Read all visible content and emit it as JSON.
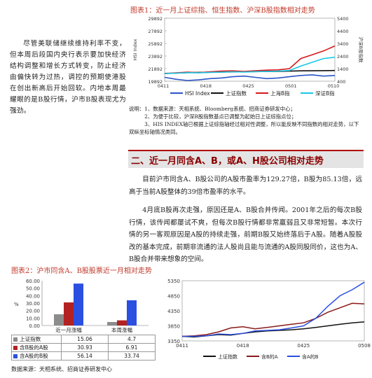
{
  "figure1": {
    "title": "图表1：近一月上证综指、恒生指数、沪深B股指数相对走势",
    "chart_data": {
      "type": "line",
      "x_ticks": [
        "0411",
        "0418",
        "0425",
        "0501",
        "0510"
      ],
      "y_left_ticks": [
        "29892",
        "27892",
        "25892",
        "23892",
        "21892",
        "19892"
      ],
      "y_right_ticks": [
        "5400",
        "4400",
        "3400",
        "2400",
        "1400",
        "400"
      ],
      "y_left_label": "HSI Index",
      "y_right_label": "沪深B股指数",
      "legend": [
        "HSI Index",
        "上证指数",
        "上海B指",
        "深证B指"
      ],
      "colors": [
        "#2a55c8",
        "#111111",
        "#d61a1a",
        "#19c8e6"
      ],
      "x": [
        0,
        2,
        4,
        6,
        8,
        10,
        12,
        14,
        16,
        18,
        20,
        22,
        24,
        26,
        28,
        30
      ],
      "series": [
        {
          "name": "HSI Index",
          "values": [
            20500,
            20200,
            20000,
            20100,
            20300,
            20400,
            20600,
            20700,
            20500,
            20300,
            20400,
            20600,
            20800,
            20900,
            20700,
            20800
          ]
        },
        {
          "name": "上证指数",
          "values": [
            1020,
            1040,
            1080,
            1100,
            1110,
            1130,
            1140,
            1150,
            1160,
            1170,
            1180,
            1200,
            1220,
            1230,
            1240,
            1250
          ]
        },
        {
          "name": "上海B指",
          "values": [
            1000,
            1060,
            1120,
            1080,
            1150,
            1200,
            1220,
            1180,
            1230,
            1280,
            1300,
            1400,
            2200,
            2500,
            2800,
            3200
          ]
        },
        {
          "name": "深证B指",
          "values": [
            1000,
            1040,
            1080,
            1060,
            1100,
            1120,
            1150,
            1130,
            1160,
            1180,
            1200,
            1250,
            1600,
            1900,
            2200,
            2300
          ]
        }
      ]
    }
  },
  "sidebar_text": "尽管美联储继续维持利率不变，但本周后段国内央行表示要加快经济结构调整和增长方式转变，防止经济由偏快转为过热，调控的预期使港股在创出新高后开始回软。内地本周最耀眼的是B股行情，沪市B股表现尤为强劲。",
  "notes": [
    "说明：1、数据来源：天相系统、Bloomberg系统、招商证券研发中心；",
    "　　　2、为便于比较，沪深B股指数基点已调整为起始日上证综指点位；",
    "　　　3、HIS INDEX轴已根据上证综指轴经过相对性调整，所以能反映不同指数的相对走势，以下双纵坐标轴情况类同。"
  ],
  "section_title": "二、近一月同含A、B，或A、H股公司相对走势",
  "paragraph1": "目前沪市同含A、B股公司的A股市盈率为129.27倍，B股为85.13倍，远高于当前A股整体的39倍市盈率的水平。",
  "paragraph2": "4月底B股再次走强，原因还是A、B股合并传闻。2001年之后的每次B股行情，该传闻都屡试不爽，但每次B股行情都非常羸弱且又非常短暂。本次行情的另一客观原因是A股的持续走强，前期B股又始终落后于A股。随着A股股改的基本完成，前期非流通的法人股尚且能与流通的A股同股同价，这也为A、B股合并带来想象的空间。",
  "figure2": {
    "title": "图表2：沪市同含A、B股股票近一月相对走势",
    "bar_chart": {
      "type": "bar",
      "categories": [
        "近一月涨幅",
        "本周涨幅"
      ],
      "y_ticks": [
        "60.00",
        "50.00",
        "40.00",
        "30.00",
        "20.00",
        "10.00",
        "0.00"
      ],
      "ylim": [
        0,
        60
      ],
      "y_unit": "%",
      "series": [
        {
          "name": "上证指数",
          "values": [
            15.06,
            4.7
          ],
          "color": "#8c8c8c"
        },
        {
          "name": "含B股的A股",
          "values": [
            30.93,
            6.91
          ],
          "color": "#b22222"
        },
        {
          "name": "含A股的B股",
          "values": [
            56.14,
            33.74
          ],
          "color": "#2b4fe0"
        }
      ]
    },
    "line_chart": {
      "type": "line",
      "x_ticks": [
        "0411",
        "0418",
        "0425",
        "0508"
      ],
      "y_ticks": [
        "5350",
        "4850",
        "4350",
        "3850",
        "3350"
      ],
      "ylim": [
        3350,
        5350
      ],
      "legend": [
        "上证指数",
        "含B的A",
        "含A的B"
      ],
      "colors": [
        "#111111",
        "#8b1a1a",
        "#2b4fe0"
      ],
      "x": [
        0,
        2,
        4,
        6,
        8,
        10,
        12,
        14,
        16,
        18,
        20,
        22,
        24,
        26,
        28,
        30
      ],
      "series": [
        {
          "name": "上证指数",
          "values": [
            3500,
            3480,
            3520,
            3560,
            3540,
            3600,
            3650,
            3680,
            3700,
            3720,
            3750,
            3800,
            3850,
            3900,
            3950,
            3980
          ]
        },
        {
          "name": "含B的A",
          "values": [
            3500,
            3520,
            3560,
            3650,
            3780,
            3820,
            3750,
            3800,
            3850,
            3900,
            3950,
            4100,
            4300,
            4450,
            4600,
            4580
          ]
        },
        {
          "name": "含A的B",
          "values": [
            3500,
            3500,
            3520,
            3580,
            3560,
            3600,
            3680,
            3700,
            3720,
            3780,
            3850,
            4100,
            4500,
            4850,
            5050,
            5300
          ]
        }
      ]
    },
    "source": "数据来源：天相系统、招商证券研发中心"
  }
}
